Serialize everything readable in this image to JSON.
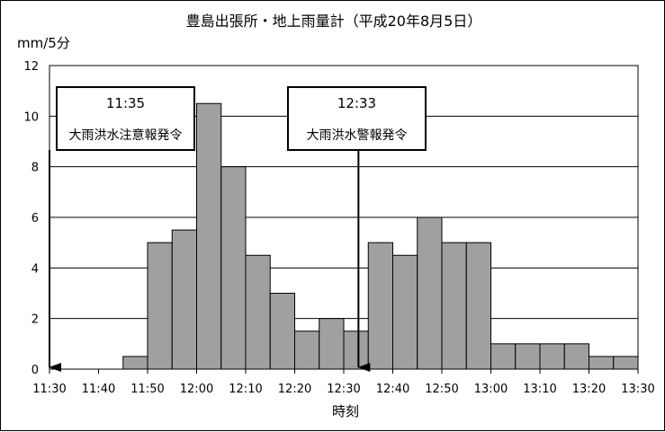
{
  "chart_data": {
    "type": "bar",
    "title": "豊島出張所・地上雨量計（平成20年8月5日）",
    "ylabel": "mm/5分",
    "xlabel": "時刻",
    "ylim": [
      0,
      12
    ],
    "yticks": [
      "0",
      "2",
      "4",
      "6",
      "8",
      "10",
      "12"
    ],
    "xlim_minutes": [
      690,
      810
    ],
    "xticks": [
      "11:30",
      "11:40",
      "11:50",
      "12:00",
      "12:10",
      "12:20",
      "12:30",
      "12:40",
      "12:50",
      "13:00",
      "13:10",
      "13:20",
      "13:30"
    ],
    "grid": true,
    "bar_fill": "#a0a0a0",
    "bins": [
      {
        "start": "11:40",
        "end": "11:45",
        "value": 0
      },
      {
        "start": "11:45",
        "end": "11:50",
        "value": 0.5
      },
      {
        "start": "11:50",
        "end": "11:55",
        "value": 5
      },
      {
        "start": "11:55",
        "end": "12:00",
        "value": 5.5
      },
      {
        "start": "12:00",
        "end": "12:05",
        "value": 10.5
      },
      {
        "start": "12:05",
        "end": "12:10",
        "value": 8
      },
      {
        "start": "12:10",
        "end": "12:15",
        "value": 4.5
      },
      {
        "start": "12:15",
        "end": "12:20",
        "value": 3
      },
      {
        "start": "12:20",
        "end": "12:25",
        "value": 1.5
      },
      {
        "start": "12:25",
        "end": "12:30",
        "value": 2
      },
      {
        "start": "12:30",
        "end": "12:35",
        "value": 1.5
      },
      {
        "start": "12:35",
        "end": "12:40",
        "value": 5
      },
      {
        "start": "12:40",
        "end": "12:45",
        "value": 4.5
      },
      {
        "start": "12:45",
        "end": "12:50",
        "value": 6
      },
      {
        "start": "12:50",
        "end": "12:55",
        "value": 5
      },
      {
        "start": "12:55",
        "end": "13:00",
        "value": 5
      },
      {
        "start": "13:00",
        "end": "13:05",
        "value": 1
      },
      {
        "start": "13:05",
        "end": "13:10",
        "value": 1
      },
      {
        "start": "13:10",
        "end": "13:15",
        "value": 1
      },
      {
        "start": "13:15",
        "end": "13:20",
        "value": 1
      },
      {
        "start": "13:20",
        "end": "13:25",
        "value": 0.5
      },
      {
        "start": "13:25",
        "end": "13:30",
        "value": 0.5
      }
    ],
    "annotations": [
      {
        "time": "11:35",
        "text": "大雨洪水注意報発令",
        "arrow_at": "11:30"
      },
      {
        "time": "12:33",
        "text": "大雨洪水警報発令",
        "arrow_at": "12:33"
      }
    ]
  }
}
